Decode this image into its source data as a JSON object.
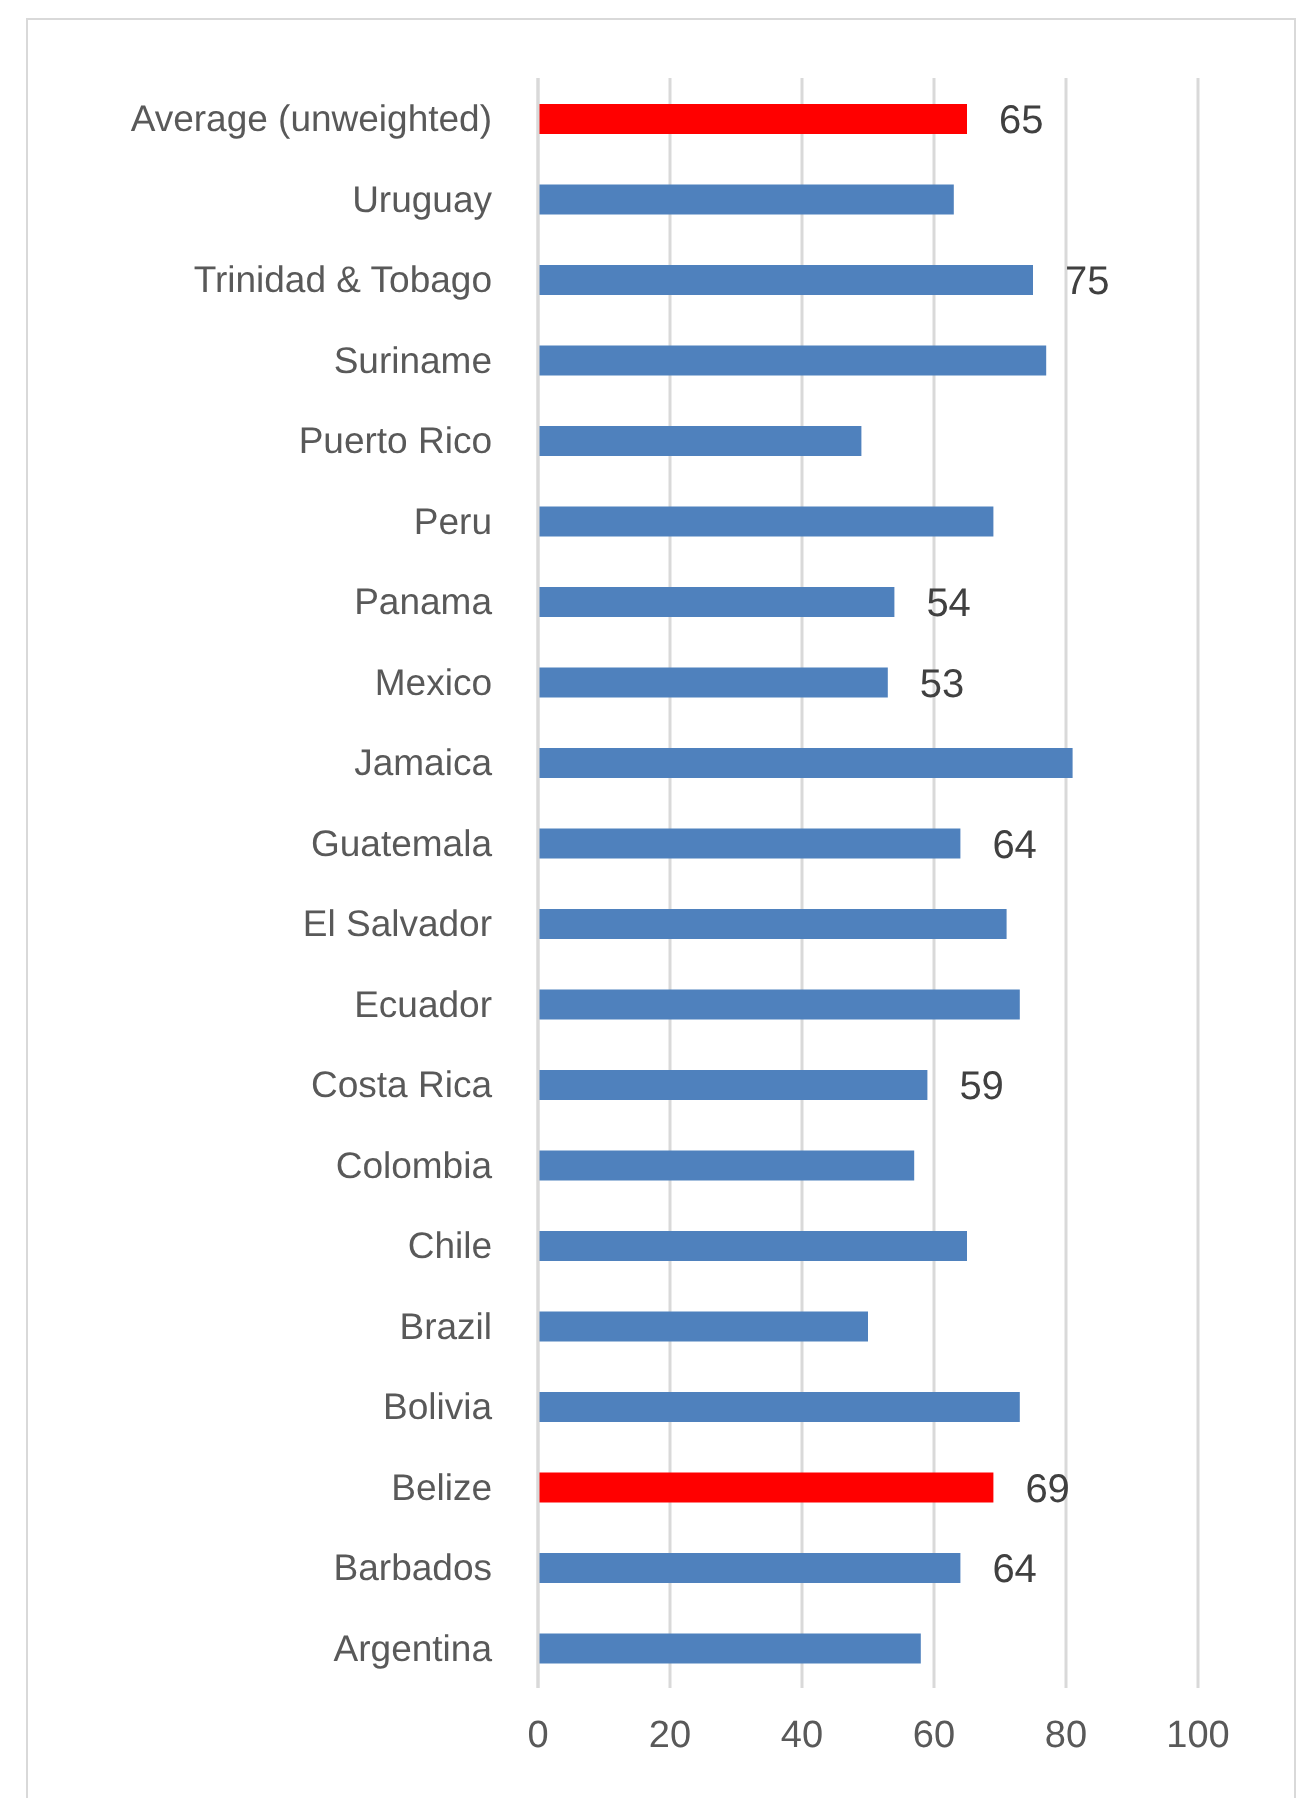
{
  "chart_data": {
    "type": "bar",
    "orientation": "horizontal",
    "categories": [
      "Average (unweighted)",
      "Uruguay",
      "Trinidad & Tobago",
      "Suriname",
      "Puerto Rico",
      "Peru",
      "Panama",
      "Mexico",
      "Jamaica",
      "Guatemala",
      "El Salvador",
      "Ecuador",
      "Costa Rica",
      "Colombia",
      "Chile",
      "Brazil",
      "Bolivia",
      "Belize",
      "Barbados",
      "Argentina"
    ],
    "values": [
      65,
      63,
      75,
      77,
      49,
      69,
      54,
      53,
      81,
      64,
      71,
      73,
      59,
      57,
      65,
      50,
      73,
      69,
      64,
      58
    ],
    "colors": [
      "#ff0000",
      "#4f81bd",
      "#4f81bd",
      "#4f81bd",
      "#4f81bd",
      "#4f81bd",
      "#4f81bd",
      "#4f81bd",
      "#4f81bd",
      "#4f81bd",
      "#4f81bd",
      "#4f81bd",
      "#4f81bd",
      "#4f81bd",
      "#4f81bd",
      "#4f81bd",
      "#4f81bd",
      "#ff0000",
      "#4f81bd",
      "#4f81bd"
    ],
    "value_labels": [
      "65",
      null,
      "75",
      null,
      null,
      null,
      "54",
      "53",
      null,
      "64",
      null,
      null,
      "59",
      null,
      null,
      null,
      null,
      "69",
      "64",
      null
    ],
    "xlim": [
      0,
      100
    ],
    "xticks": [
      0,
      20,
      40,
      60,
      80,
      100
    ],
    "grid": "x"
  }
}
